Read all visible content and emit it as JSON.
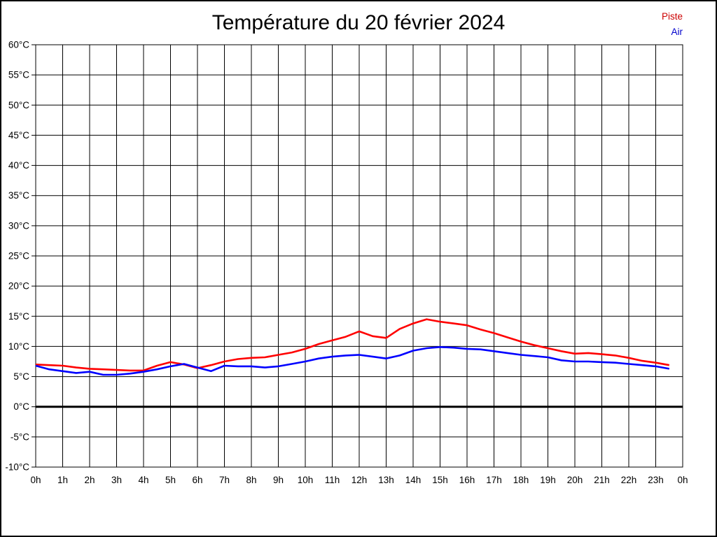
{
  "title": "Température du 20 février 2024",
  "legend": {
    "items": [
      {
        "label": "Piste",
        "color": "#cc0000"
      },
      {
        "label": "Air",
        "color": "#0000cc"
      }
    ]
  },
  "chart_data": {
    "type": "line",
    "title": "Température du 20 février 2024",
    "xlabel": "",
    "ylabel": "",
    "xlim": [
      0,
      24
    ],
    "ylim": [
      -10,
      60
    ],
    "y_step": 5,
    "grid": true,
    "zero_line": "bold",
    "legend_position": "top-right",
    "x_tick_labels": [
      "0h",
      "1h",
      "2h",
      "3h",
      "4h",
      "5h",
      "6h",
      "7h",
      "8h",
      "9h",
      "10h",
      "11h",
      "12h",
      "13h",
      "14h",
      "15h",
      "16h",
      "17h",
      "18h",
      "19h",
      "20h",
      "21h",
      "22h",
      "23h",
      "0h"
    ],
    "y_tick_labels": [
      "60°C",
      "55°C",
      "50°C",
      "45°C",
      "40°C",
      "35°C",
      "30°C",
      "25°C",
      "20°C",
      "15°C",
      "10°C",
      "5°C",
      "0°C",
      "-5°C",
      "-10°C"
    ],
    "x": [
      0,
      0.5,
      1,
      1.5,
      2,
      2.5,
      3,
      3.5,
      4,
      4.5,
      5,
      5.5,
      6,
      6.5,
      7,
      7.5,
      8,
      8.5,
      9,
      9.5,
      10,
      10.5,
      11,
      11.5,
      12,
      12.5,
      13,
      13.5,
      14,
      14.5,
      15,
      15.5,
      16,
      16.5,
      17,
      17.5,
      18,
      18.5,
      19,
      19.5,
      20,
      20.5,
      21,
      21.5,
      22,
      22.5,
      23,
      23.5
    ],
    "series": [
      {
        "name": "Piste",
        "color": "#ff0000",
        "values": [
          7.0,
          6.9,
          6.8,
          6.5,
          6.3,
          6.2,
          6.1,
          6.0,
          6.0,
          6.8,
          7.4,
          7.0,
          6.4,
          6.9,
          7.5,
          7.9,
          8.1,
          8.2,
          8.6,
          9.0,
          9.6,
          10.4,
          11.0,
          11.6,
          12.5,
          11.7,
          11.4,
          12.9,
          13.8,
          14.5,
          14.1,
          13.8,
          13.5,
          12.8,
          12.2,
          11.5,
          10.8,
          10.2,
          9.7,
          9.2,
          8.8,
          8.9,
          8.7,
          8.5,
          8.1,
          7.6,
          7.3,
          6.9
        ]
      },
      {
        "name": "Air",
        "color": "#0000ff",
        "values": [
          6.8,
          6.2,
          5.9,
          5.6,
          5.8,
          5.3,
          5.3,
          5.5,
          5.8,
          6.2,
          6.7,
          7.1,
          6.5,
          5.9,
          6.8,
          6.7,
          6.7,
          6.5,
          6.7,
          7.1,
          7.5,
          8.0,
          8.3,
          8.5,
          8.6,
          8.3,
          8.0,
          8.5,
          9.3,
          9.7,
          9.9,
          9.8,
          9.6,
          9.5,
          9.2,
          8.9,
          8.6,
          8.4,
          8.2,
          7.7,
          7.5,
          7.5,
          7.4,
          7.3,
          7.1,
          6.9,
          6.7,
          6.3
        ]
      }
    ]
  }
}
